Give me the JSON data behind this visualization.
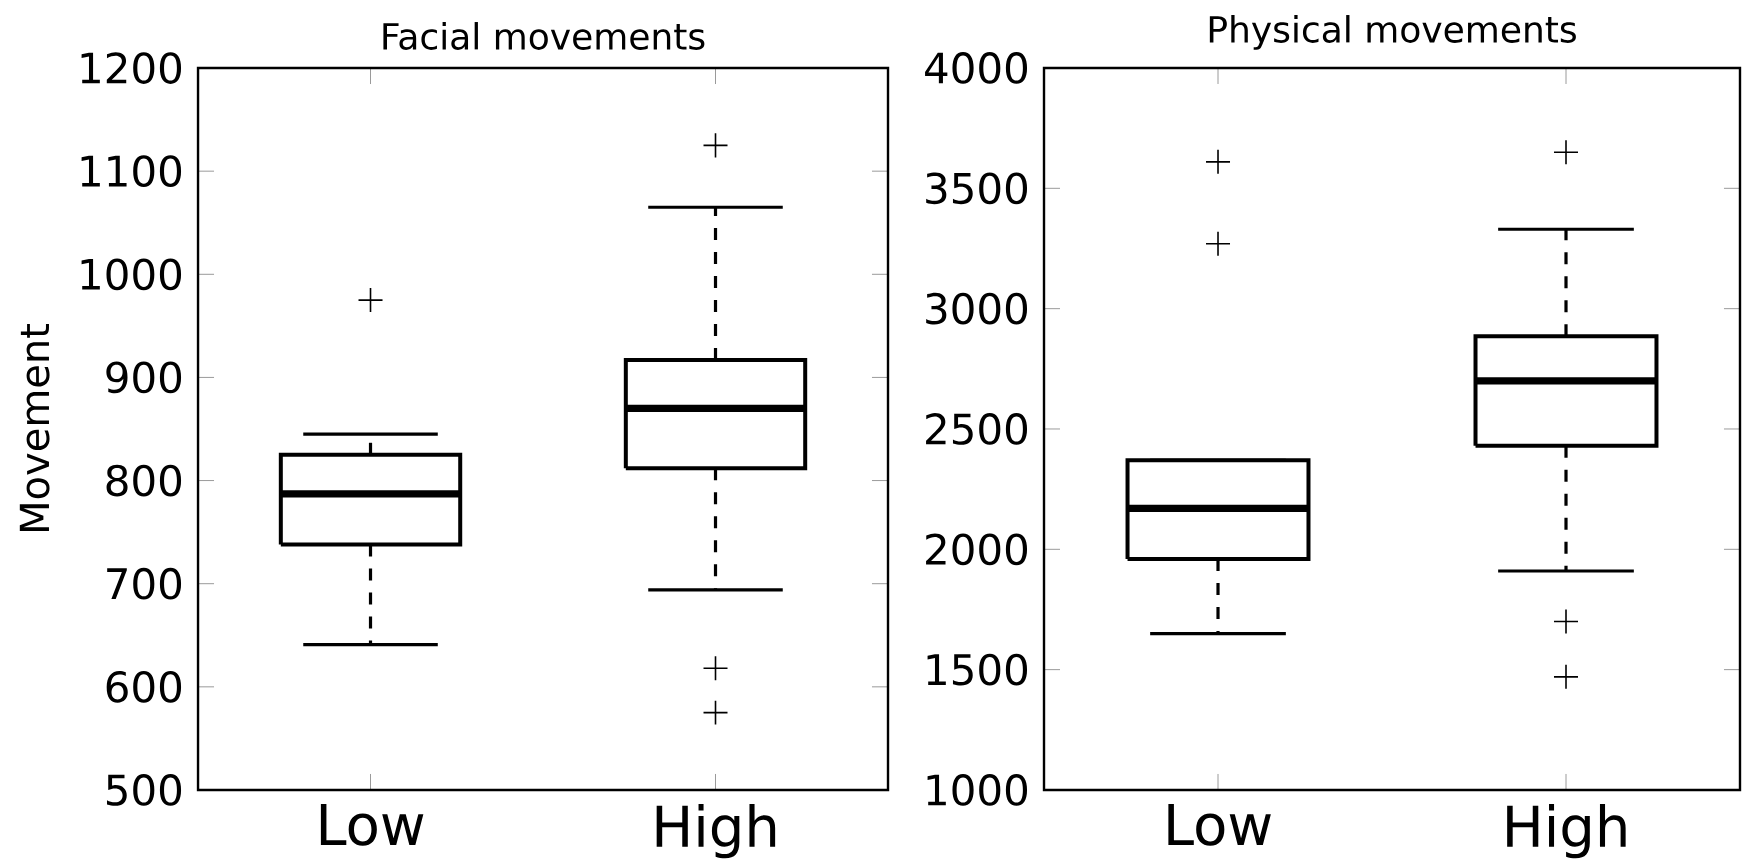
{
  "chart_data": [
    {
      "type": "box",
      "title": "Facial movements",
      "ylabel": "Movement",
      "categories": [
        "Low",
        "High"
      ],
      "ylim": [
        500,
        1200
      ],
      "yticks": [
        500,
        600,
        700,
        800,
        900,
        1000,
        1100,
        1200
      ],
      "boxes": [
        {
          "low": 641,
          "q1": 738,
          "median": 787,
          "q3": 825,
          "high": 845,
          "outliers": [
            975
          ]
        },
        {
          "low": 694,
          "q1": 812,
          "median": 870,
          "q3": 917,
          "high": 1065,
          "outliers": [
            1125,
            618,
            575
          ]
        }
      ]
    },
    {
      "type": "box",
      "title": "Physical movements",
      "categories": [
        "Low",
        "High"
      ],
      "ylim": [
        1000,
        4000
      ],
      "yticks": [
        1000,
        1500,
        2000,
        2500,
        3000,
        3500,
        4000
      ],
      "boxes": [
        {
          "low": 1650,
          "q1": 1960,
          "median": 2170,
          "q3": 2370,
          "high": 2370,
          "outliers": [
            3610,
            3270
          ]
        },
        {
          "low": 1910,
          "q1": 2430,
          "median": 2700,
          "q3": 2885,
          "high": 3330,
          "outliers": [
            3650,
            1700,
            1470
          ]
        }
      ]
    }
  ]
}
